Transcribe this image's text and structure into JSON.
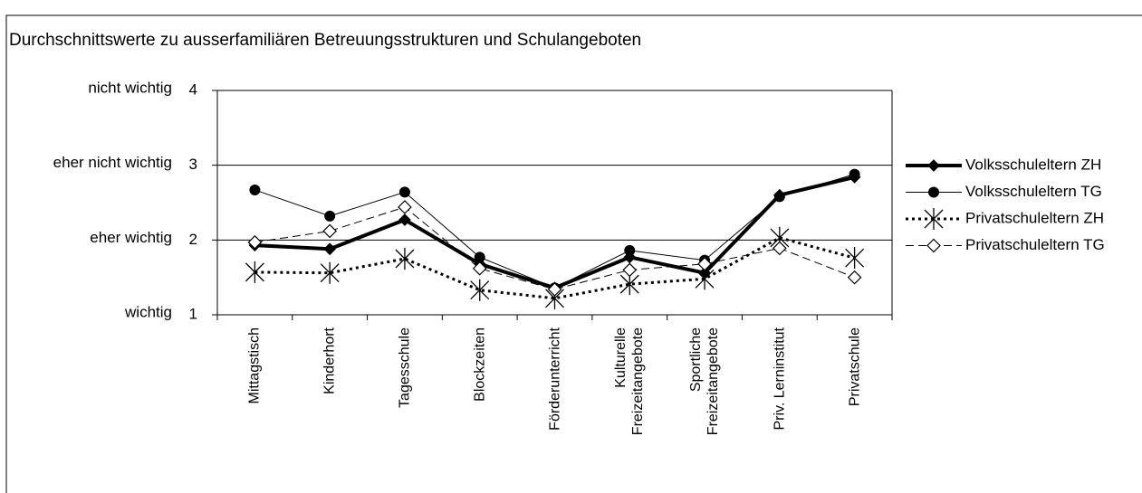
{
  "chart_data": {
    "type": "line",
    "title": "Durchschnittswerte zu ausserfamiliären Betreuungsstrukturen und Schulangeboten",
    "categories": [
      "Mittagstisch",
      "Kinderhort",
      "Tagesschule",
      "Blockzeiten",
      "Förderunterricht",
      "Kulturelle\nFreizeitangebote",
      "Sportliche\nFreizeitangebote",
      "Priv. Lerninstitut",
      "Privatschule"
    ],
    "ylim": [
      1,
      4
    ],
    "yticks": [
      1,
      2,
      3,
      4
    ],
    "ytick_names": [
      "wichtig",
      "eher  wichtig",
      "eher nicht wichtig",
      "nicht wichtig"
    ],
    "grid": true,
    "legend": "right",
    "series": [
      {
        "name": "Volksschuleltern ZH",
        "color": "#000000",
        "marker": "diamond",
        "line_width": 4,
        "dash": "solid",
        "values": [
          1.93,
          1.88,
          2.27,
          1.68,
          1.36,
          1.77,
          1.56,
          2.6,
          2.84
        ]
      },
      {
        "name": "Volksschuleltern TG",
        "color": "#000000",
        "marker": "circle",
        "line_width": 1,
        "dash": "solid",
        "values": [
          2.67,
          2.32,
          2.64,
          1.77,
          1.36,
          1.86,
          1.73,
          2.58,
          2.88
        ]
      },
      {
        "name": "Privatschuleltern ZH",
        "color": "#000000",
        "marker": "star",
        "line_width": 3,
        "dash": "dotted",
        "values": [
          1.57,
          1.56,
          1.75,
          1.33,
          1.22,
          1.41,
          1.48,
          2.03,
          1.76
        ]
      },
      {
        "name": "Privatschuleltern TG",
        "color": "#000000",
        "marker": "open-diamond",
        "line_width": 1,
        "dash": "dashed",
        "values": [
          1.97,
          2.12,
          2.44,
          1.62,
          1.34,
          1.6,
          1.68,
          1.89,
          1.5
        ]
      }
    ]
  }
}
